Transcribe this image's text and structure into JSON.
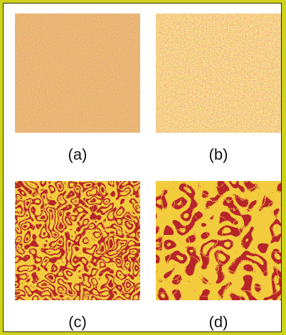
{
  "panels": [
    {
      "id": "a",
      "caption": "(a)",
      "pattern": "fine-noise",
      "colors": [
        "#e8772a",
        "#d4452a",
        "#f0a040",
        "#c83a20"
      ]
    },
    {
      "id": "b",
      "caption": "(b)",
      "pattern": "fine-spots",
      "colors": [
        "#eea040",
        "#e07a28",
        "#f5c050",
        "#d85a22"
      ]
    },
    {
      "id": "c",
      "caption": "(c)",
      "pattern": "thin-labyrinth",
      "colors": [
        "#f2cc3c",
        "#b7252a"
      ]
    },
    {
      "id": "d",
      "caption": "(d)",
      "pattern": "thick-labyrinth",
      "colors": [
        "#f2cc3c",
        "#b7252a"
      ]
    }
  ],
  "border_color": "#cfd21b"
}
